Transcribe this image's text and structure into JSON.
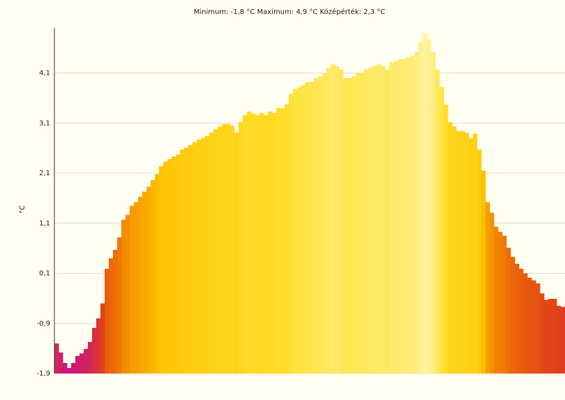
{
  "chart_data": {
    "type": "bar",
    "title": "Minimum: -1,8 °C Maximum: 4,9 °C Középérték: 2,3 °C",
    "y_label": "°C",
    "values": [
      -1.3,
      -1.48,
      -1.69,
      -1.79,
      -1.69,
      -1.55,
      -1.5,
      -1.41,
      -1.27,
      -0.99,
      -0.8,
      -0.5,
      0.19,
      0.4,
      0.57,
      0.82,
      1.17,
      1.27,
      1.45,
      1.52,
      1.63,
      1.73,
      1.83,
      1.96,
      2.08,
      2.24,
      2.33,
      2.38,
      2.43,
      2.47,
      2.57,
      2.61,
      2.66,
      2.72,
      2.77,
      2.8,
      2.84,
      2.91,
      2.98,
      3.03,
      3.08,
      3.08,
      3.05,
      2.91,
      3.12,
      3.26,
      3.33,
      3.29,
      3.26,
      3.3,
      3.26,
      3.33,
      3.3,
      3.4,
      3.4,
      3.47,
      3.68,
      3.78,
      3.82,
      3.86,
      3.92,
      3.92,
      4.0,
      4.03,
      4.1,
      4.2,
      4.28,
      4.24,
      4.17,
      4.0,
      4.0,
      4.03,
      4.1,
      4.1,
      4.17,
      4.2,
      4.24,
      4.28,
      4.24,
      4.17,
      4.31,
      4.34,
      4.38,
      4.38,
      4.42,
      4.45,
      4.52,
      4.73,
      4.9,
      4.76,
      4.52,
      4.17,
      3.82,
      3.47,
      3.12,
      3.03,
      2.94,
      2.94,
      2.91,
      2.8,
      2.89,
      2.57,
      2.15,
      1.52,
      1.31,
      1.03,
      0.93,
      0.85,
      0.61,
      0.43,
      0.29,
      0.19,
      0.1,
      0.01,
      -0.04,
      -0.1,
      -0.3,
      -0.43,
      -0.41,
      -0.41,
      -0.55,
      -0.57
    ],
    "colormap": [
      "#c8108c",
      "#e0401a",
      "#f07a00",
      "#ffc400",
      "#ffe030",
      "#fff4a8"
    ],
    "ylim": [
      -1.9,
      5.0
    ],
    "yticks": [
      {
        "value": -1.9,
        "label": "-1,9"
      },
      {
        "value": -0.9,
        "label": "-0,9"
      },
      {
        "value": 0.1,
        "label": "0,1"
      },
      {
        "value": 1.1,
        "label": "1,1"
      },
      {
        "value": 2.1,
        "label": "2,1"
      },
      {
        "value": 3.1,
        "label": "3,1"
      },
      {
        "value": 4.1,
        "label": "4,1"
      }
    ],
    "grid": true
  }
}
